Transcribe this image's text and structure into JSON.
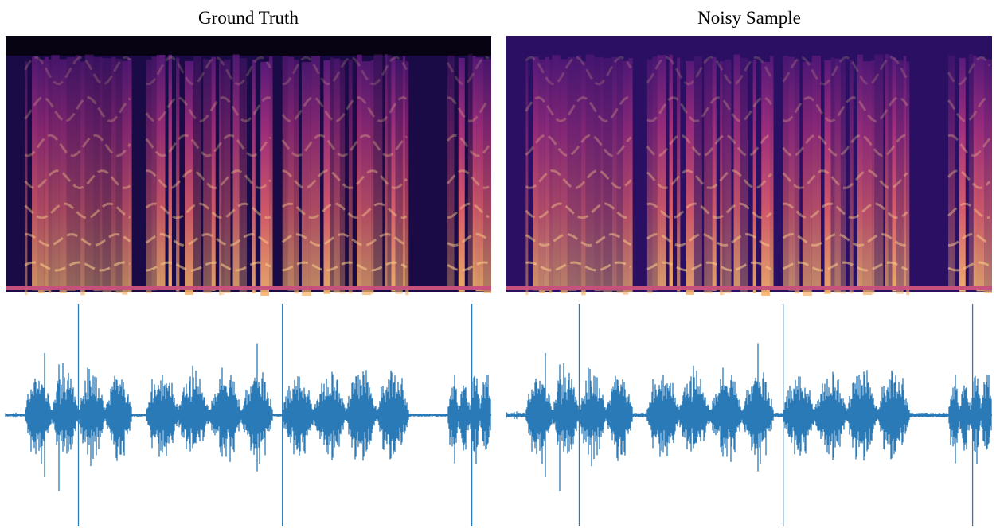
{
  "panels": [
    {
      "title": "Ground Truth"
    },
    {
      "title": "Noisy Sample"
    }
  ]
}
